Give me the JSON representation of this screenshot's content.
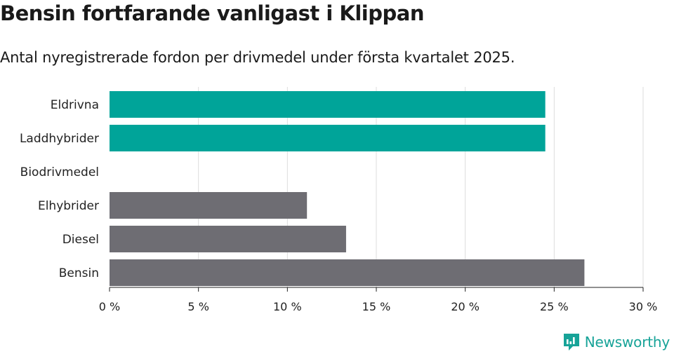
{
  "title": "Bensin fortfarande vanligast i Klippan",
  "subtitle": "Antal nyregistrerade fordon per drivmedel under första kvartalet 2025.",
  "brand": "Newsworthy",
  "colors": {
    "highlight": "#00a499",
    "default": "#6e6d73",
    "grid": "#dddddd",
    "brand": "#17a398"
  },
  "chart_data": {
    "type": "bar",
    "orientation": "horizontal",
    "categories": [
      "Eldrivna",
      "Laddhybrider",
      "Biodrivmedel",
      "Elhybrider",
      "Diesel",
      "Bensin"
    ],
    "values": [
      24.5,
      24.5,
      0,
      11.1,
      13.3,
      26.7
    ],
    "highlighted": [
      true,
      true,
      false,
      false,
      false,
      false
    ],
    "xlim": [
      0,
      30
    ],
    "xticks": [
      0,
      5,
      10,
      15,
      20,
      25,
      30
    ],
    "tick_suffix": " %",
    "grid": true
  }
}
